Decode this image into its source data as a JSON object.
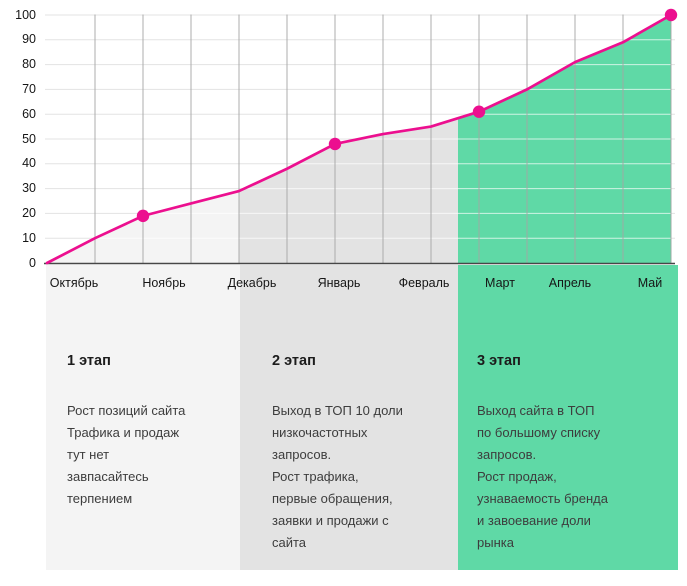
{
  "chart_data": {
    "type": "area",
    "title": "",
    "xlabel": "",
    "ylabel": "",
    "categories": [
      "Октябрь",
      "Ноябрь",
      "Декабрь",
      "Январь",
      "Февраль",
      "Март",
      "Апрель",
      "Май"
    ],
    "values": [
      0,
      19,
      29,
      48,
      55,
      61,
      81,
      100
    ],
    "marked_points": [
      {
        "category": "Ноябрь",
        "value": 19
      },
      {
        "category": "Январь",
        "value": 48
      },
      {
        "category": "Март",
        "value": 61
      },
      {
        "category": "Май",
        "value": 100
      }
    ],
    "polyline_values": [
      0,
      10,
      19,
      24,
      29,
      38,
      48,
      52,
      55,
      61,
      70,
      81,
      89,
      100
    ],
    "month_polyline_indices": [
      0,
      2,
      4,
      6,
      8,
      9,
      11,
      13
    ],
    "y_ticks": [
      0,
      10,
      20,
      30,
      40,
      50,
      60,
      70,
      80,
      90,
      100
    ],
    "ylim": [
      0,
      100
    ],
    "grid": true,
    "legend": "none",
    "line_color": "#ec0f8f",
    "stage_fill_colors": [
      "#f4f4f4",
      "#e3e3e3",
      "#5fd9a6"
    ],
    "gridline_color_vertical": "#a4a4a4",
    "gridline_color_horizontal": "#e3e3e3",
    "axis_color": "#474747"
  },
  "stages": [
    {
      "title": "1 этап",
      "description": "Рост позиций сайта\nТрафика и продаж\nтут нет\nзавпасайтесь\nтерпением",
      "panel_color": "#f4f4f4"
    },
    {
      "title": "2 этап",
      "description": "Выход в ТОП 10 доли\nнизкочастотных\nзапросов.\nРост трафика,\nпервые обращения,\nзаявки и продажи с\nсайта",
      "panel_color": "#e3e3e3"
    },
    {
      "title": "3 этап",
      "description": "Выход сайта в ТОП\nпо большому списку\nзапросов.\nРост продаж,\nузнаваемость бренда\nи завоевание доли\nрынка",
      "panel_color": "#5fd9a6"
    }
  ]
}
